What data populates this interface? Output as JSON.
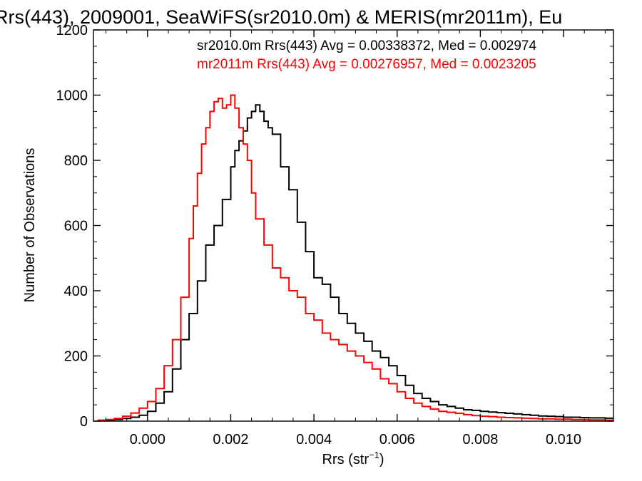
{
  "chart_data": {
    "type": "line",
    "title": "Rrs(443), 2009001, SeaWiFS(sr2010.0m) & MERIS(mr2011m), Eu",
    "xlabel_main": "Rrs (str",
    "xlabel_sup": "−1",
    "xlabel_close": ")",
    "ylabel": "Number of Observations",
    "xlim": [
      -0.0013,
      0.0112
    ],
    "ylim": [
      0,
      1200
    ],
    "x_ticks": [
      0.0,
      0.002,
      0.004,
      0.006,
      0.008,
      0.01
    ],
    "x_tick_labels": [
      "0.000",
      "0.002",
      "0.004",
      "0.006",
      "0.008",
      "0.010"
    ],
    "y_ticks": [
      0,
      200,
      400,
      600,
      800,
      1000,
      1200
    ],
    "y_tick_labels": [
      "0",
      "200",
      "400",
      "600",
      "800",
      "1000",
      "1200"
    ],
    "grid": false,
    "series": [
      {
        "name": "sr2010.0m",
        "annotation": "sr2010.0m Rrs(443) Avg = 0.00338372, Med = 0.002974",
        "color": "#000000",
        "x": [
          -0.0012,
          -0.001,
          -0.0008,
          -0.0006,
          -0.0004,
          -0.0002,
          0.0,
          0.0002,
          0.0004,
          0.0006,
          0.0008,
          0.001,
          0.0012,
          0.0014,
          0.0016,
          0.0018,
          0.002,
          0.0021,
          0.0022,
          0.0023,
          0.0024,
          0.0025,
          0.0026,
          0.0027,
          0.0028,
          0.0029,
          0.003,
          0.0032,
          0.0034,
          0.0036,
          0.0038,
          0.004,
          0.0042,
          0.0044,
          0.0046,
          0.0048,
          0.005,
          0.0052,
          0.0054,
          0.0056,
          0.0058,
          0.006,
          0.0062,
          0.0064,
          0.0066,
          0.0068,
          0.007,
          0.0072,
          0.0074,
          0.0076,
          0.0078,
          0.008,
          0.0082,
          0.0084,
          0.0086,
          0.0088,
          0.009,
          0.0092,
          0.0094,
          0.0096,
          0.0098,
          0.01,
          0.0102,
          0.0104,
          0.0106,
          0.0108,
          0.011
        ],
        "y": [
          2,
          3,
          5,
          8,
          12,
          18,
          30,
          55,
          90,
          160,
          250,
          330,
          430,
          540,
          600,
          680,
          780,
          830,
          860,
          890,
          930,
          950,
          970,
          950,
          920,
          900,
          880,
          780,
          710,
          610,
          520,
          440,
          420,
          380,
          330,
          300,
          270,
          245,
          215,
          195,
          170,
          140,
          110,
          85,
          70,
          60,
          50,
          45,
          40,
          35,
          33,
          30,
          28,
          26,
          24,
          22,
          20,
          18,
          16,
          15,
          14,
          12,
          12,
          11,
          10,
          10,
          9
        ]
      },
      {
        "name": "mr2011m",
        "annotation": "mr2011m Rrs(443) Avg = 0.00276957, Med = 0.0023205",
        "color": "#ff0000",
        "x": [
          -0.0012,
          -0.001,
          -0.0008,
          -0.0006,
          -0.0004,
          -0.0002,
          0.0,
          0.0002,
          0.0004,
          0.0006,
          0.0008,
          0.001,
          0.0011,
          0.0012,
          0.0013,
          0.0014,
          0.0015,
          0.0016,
          0.0017,
          0.0018,
          0.0019,
          0.002,
          0.0021,
          0.0022,
          0.0023,
          0.0024,
          0.0025,
          0.0026,
          0.0028,
          0.003,
          0.0032,
          0.0034,
          0.0036,
          0.0038,
          0.004,
          0.0042,
          0.0044,
          0.0046,
          0.0048,
          0.005,
          0.0052,
          0.0054,
          0.0056,
          0.0058,
          0.006,
          0.0062,
          0.0064,
          0.0066,
          0.0068,
          0.007,
          0.0072,
          0.0074,
          0.0076,
          0.0078,
          0.008,
          0.0082,
          0.0084,
          0.0086,
          0.0088,
          0.009,
          0.0092,
          0.0094,
          0.0096,
          0.0098,
          0.01,
          0.0102,
          0.0104,
          0.0106,
          0.0108,
          0.011
        ],
        "y": [
          3,
          5,
          8,
          15,
          25,
          40,
          60,
          100,
          170,
          250,
          380,
          560,
          660,
          760,
          850,
          900,
          950,
          980,
          990,
          960,
          970,
          1000,
          960,
          900,
          850,
          800,
          700,
          620,
          540,
          470,
          440,
          400,
          380,
          330,
          310,
          270,
          250,
          235,
          215,
          200,
          180,
          160,
          130,
          115,
          90,
          70,
          55,
          45,
          37,
          30,
          27,
          24,
          20,
          17,
          15,
          14,
          12,
          11,
          10,
          9,
          8,
          7,
          7,
          6,
          6,
          5,
          5,
          4,
          4,
          3
        ]
      }
    ]
  }
}
